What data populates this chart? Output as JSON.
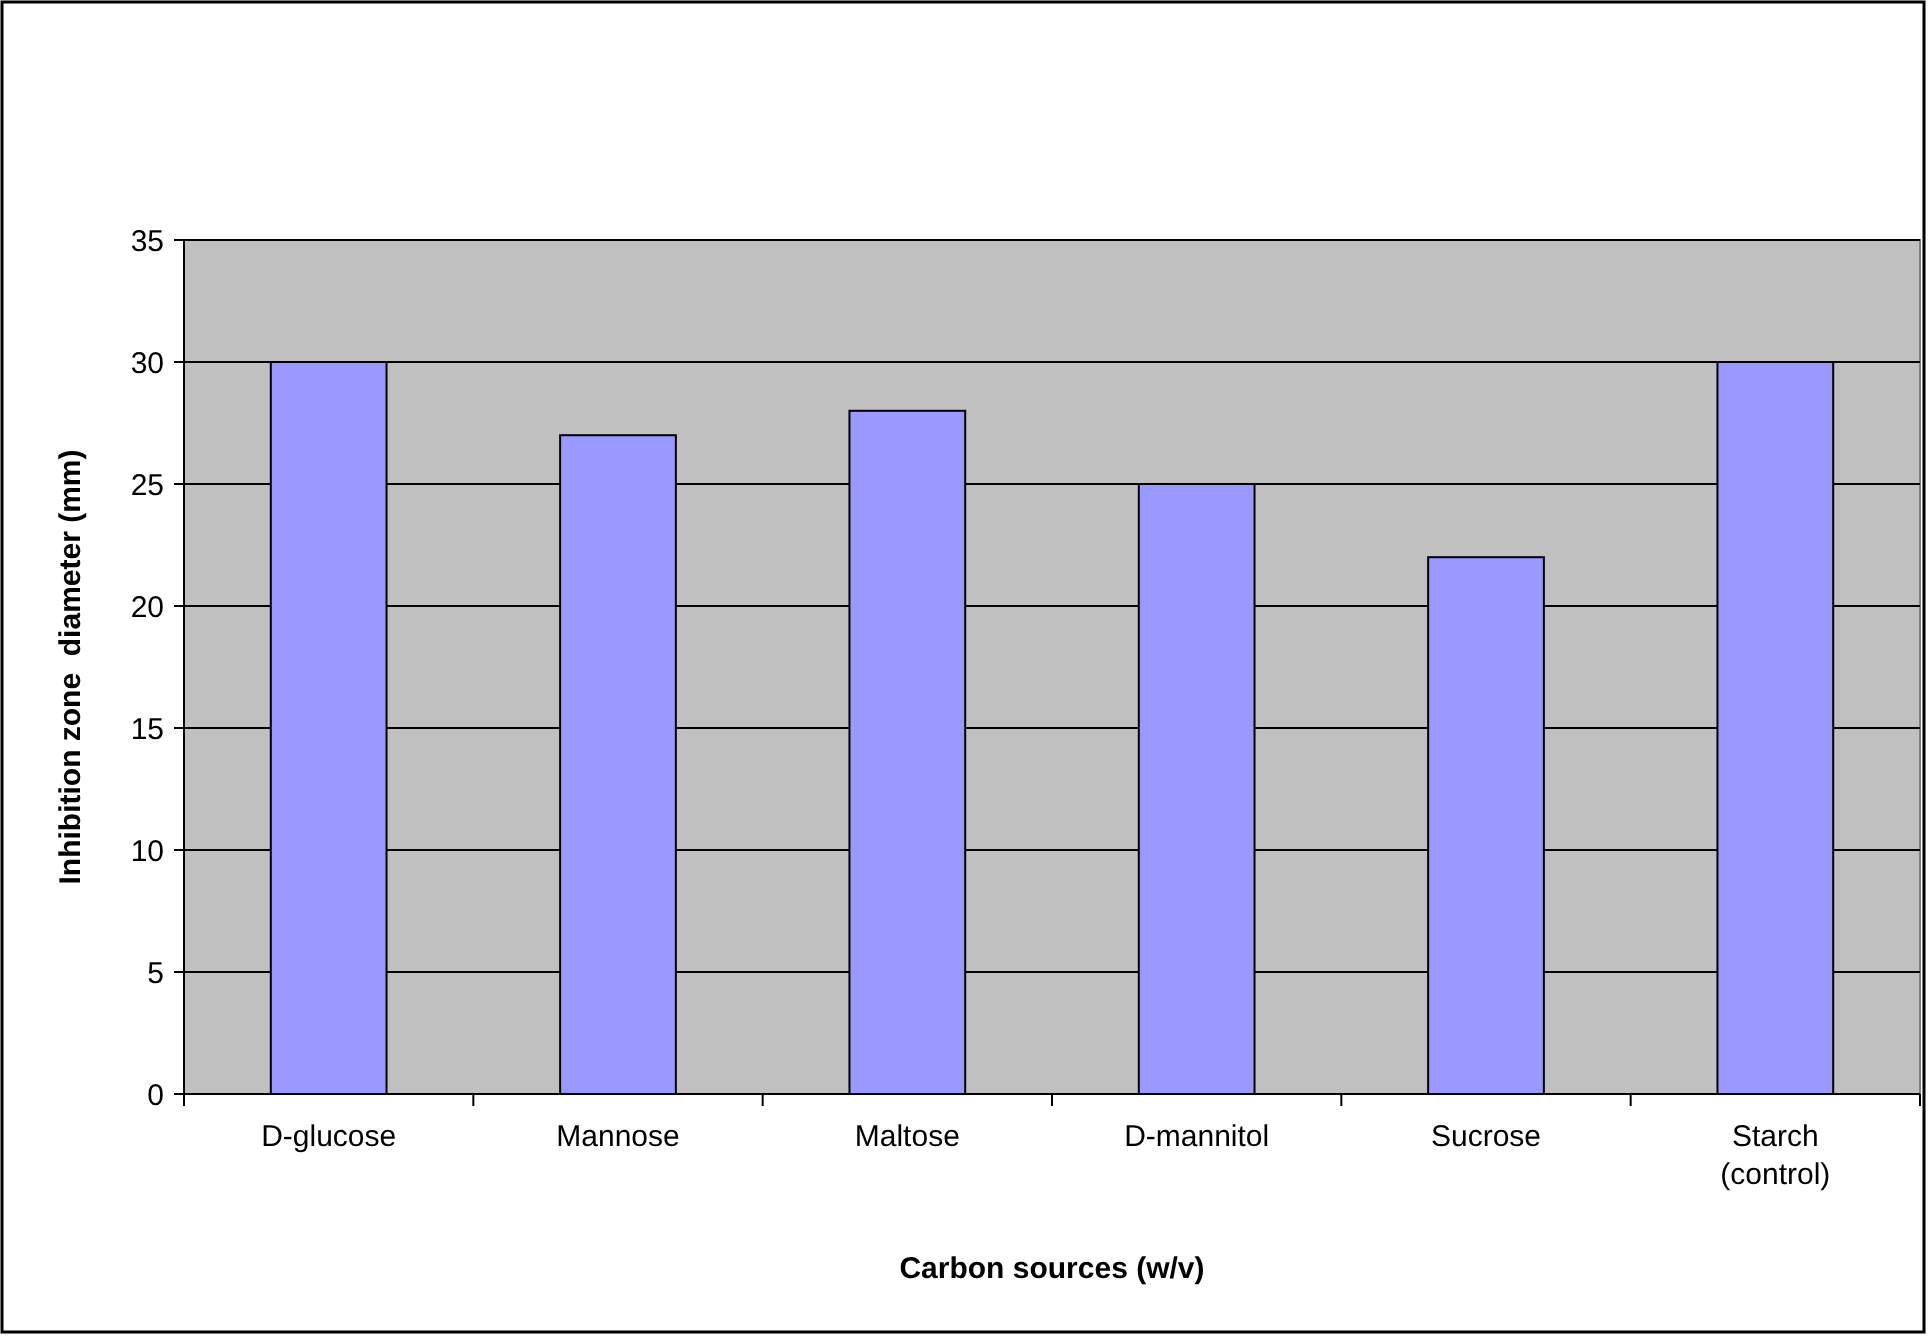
{
  "chart_data": {
    "type": "bar",
    "xlabel": "Carbon sources (w/v)",
    "ylabel": "Inhibition zone  diameter (mm)",
    "categories": [
      "D-glucose",
      "Mannose",
      "Maltose",
      "D-mannitol",
      "Sucrose",
      "Starch (control)"
    ],
    "values": [
      30,
      27,
      28,
      25,
      22,
      30
    ],
    "color": "#9999ff",
    "ylim": [
      0,
      35
    ],
    "yticks": [
      0,
      5,
      10,
      15,
      20,
      25,
      30,
      35
    ],
    "grid": "y"
  }
}
